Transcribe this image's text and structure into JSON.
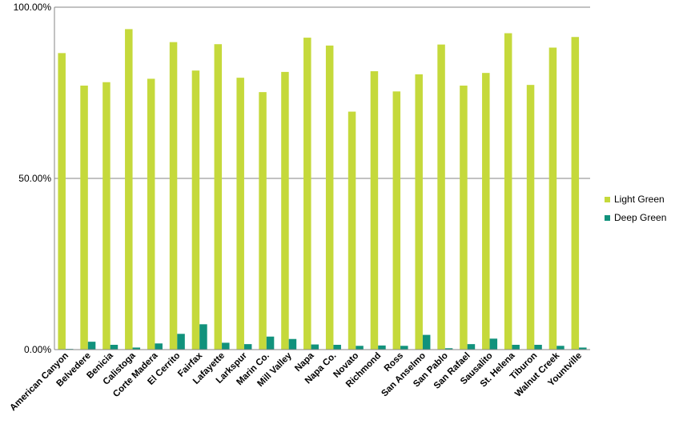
{
  "chart_data": {
    "type": "bar",
    "title": "",
    "xlabel": "",
    "ylabel": "",
    "ylim": [
      0,
      100
    ],
    "yticks": [
      {
        "value": 0,
        "label": "0.00%"
      },
      {
        "value": 50,
        "label": "50.00%"
      },
      {
        "value": 100,
        "label": "100.00%"
      }
    ],
    "grid": true,
    "legend": "right",
    "categories": [
      "American Canyon",
      "Belvedere",
      "Benicia",
      "Calistoga",
      "Corte Madera",
      "El Cerrito",
      "Fairfax",
      "Lafayette",
      "Larkspur",
      "Marin Co.",
      "Mill Valley",
      "Napa",
      "Napa Co.",
      "Novato",
      "Richmond",
      "Ross",
      "San Anselmo",
      "San Pablo",
      "San Rafael",
      "Sausalito",
      "St. Helena",
      "Tiburon",
      "Walnut Creek",
      "Yountville"
    ],
    "series": [
      {
        "name": "Light Green",
        "color": "#c5d93b",
        "values": [
          86.6,
          77.1,
          78.1,
          93.6,
          79.1,
          89.8,
          81.5,
          89.2,
          79.4,
          75.2,
          81.1,
          91.1,
          88.8,
          69.5,
          81.3,
          75.4,
          80.4,
          89.1,
          77.1,
          80.8,
          92.4,
          77.3,
          88.2,
          91.3
        ]
      },
      {
        "name": "Deep Green",
        "color": "#11927c",
        "values": [
          0.2,
          2.3,
          1.4,
          0.6,
          1.8,
          4.6,
          7.4,
          2.0,
          1.6,
          3.8,
          3.1,
          1.5,
          1.4,
          1.1,
          1.2,
          1.1,
          4.3,
          0.4,
          1.6,
          3.2,
          1.4,
          1.4,
          1.1,
          0.6
        ]
      }
    ]
  }
}
